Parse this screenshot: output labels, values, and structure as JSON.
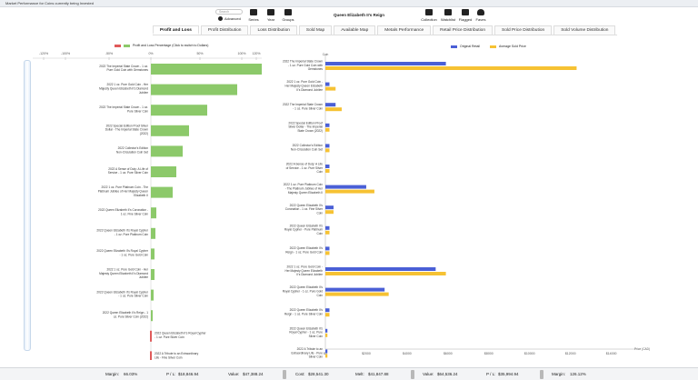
{
  "window": {
    "title": "Market Performance for Coins currently being Invested"
  },
  "toolbar": {
    "search_placeholder": "Search",
    "advanced_label": "Advanced",
    "series_label": "Series",
    "year_label": "Year",
    "groups_label": "Groups",
    "reign_title": "Queen Elizabeth II's Reign",
    "collection_label": "Collection",
    "watchlist_label": "Watchlist",
    "flagged_label": "Flagged",
    "faves_label": "Faves"
  },
  "tabs": [
    {
      "label": "Profit and Loss",
      "active": true
    },
    {
      "label": "Profit Distribution"
    },
    {
      "label": "Loss Distribution"
    },
    {
      "label": "Sold Map"
    },
    {
      "label": "Available Map"
    },
    {
      "label": "Metals Performance"
    },
    {
      "label": "Retail Price Distribution"
    },
    {
      "label": "Sold Price Distribution"
    },
    {
      "label": "Sold Volume Distribution"
    }
  ],
  "chart_data": [
    {
      "type": "bar",
      "orientation": "horizontal",
      "legend": [
        "Profit and Loss Percentage (Click to switch to Dollars)"
      ],
      "series_colors": {
        "profit": "#8cc96a",
        "loss": "#e05a5a"
      },
      "x_tick_labels": [
        "-120%",
        "-100%",
        "-50%",
        "0%",
        "50%",
        "100%",
        "120%"
      ],
      "xlim": [
        -120,
        120
      ],
      "categories": [
        "2022 The Imperial State Crown - 1 oz. Pure Gold Coin with Gemstones",
        "2022 1 oz. Pure Gold Coin - Her Majesty Queen Elizabeth II's Diamond Jubilee",
        "2022 The Imperial State Crown - 1 oz. Pure Silver Coin",
        "2022 Special Edition Proof Silver Dollar - The Imperial State Crown (2022)",
        "2022 Collector's Edition Non-Circulation Coin Set",
        "2022 A Sense of Duty: A Life of Service - 1 oz. Pure Silver Coin",
        "2022 1 oz. Pure Platinum Coin - The Platinum Jubilee of Her Majesty Queen Elizabeth II",
        "2022 Queen Elizabeth II's Coronation - 1 oz. Fine Silver Coin",
        "2022 Queen Elizabeth II's Royal Cypher - 1 oz. Pure Platinum Coin",
        "2022 Queen Elizabeth II's Royal Cypher - 1 oz. Pure Gold Coin",
        "2022 1 oz. Pure Gold Coin - Her Majesty Queen Elizabeth II's Diamond Jubilee",
        "2022 Queen Elizabeth II's Royal Cypher - 1 oz. Pure Silver Coin",
        "2022 Queen Elizabeth II's Reign - 1 oz. Pure Silver Coin (2022)",
        "2022 Queen Elizabeth II's Royal Cypher - 1 oz. Pure Silver Coin",
        "2022 A Tribute to an Extraordinary Life - Fine Silver Coin"
      ],
      "values": [
        122,
        95,
        62,
        42,
        35,
        28,
        24,
        6,
        5,
        4,
        4,
        3,
        2,
        -1,
        -1
      ]
    },
    {
      "type": "bar",
      "orientation": "horizontal",
      "series": [
        {
          "name": "Original Retail",
          "color": "#4a5fd6",
          "values": [
            5900,
            200,
            500,
            200,
            200,
            200,
            2000,
            400,
            200,
            200,
            5400,
            2900,
            200,
            100,
            100
          ]
        },
        {
          "name": "Average Sold Price",
          "color": "#f6c233",
          "values": [
            12300,
            500,
            800,
            200,
            200,
            200,
            2400,
            400,
            200,
            200,
            5900,
            3100,
            200,
            100,
            100
          ]
        }
      ],
      "categories": [
        "2022 The Imperial State Crown - 1 oz. Pure Gold Coin with Gemstones",
        "2022 1 oz. Pure Gold Coin - Her Majesty Queen Elizabeth II's Diamond Jubilee",
        "2022 The Imperial State Crown - 1 oz. Pure Silver Coin",
        "2022 Special Edition Proof Silver Dollar - The Imperial State Crown (2022)",
        "2022 Collector's Edition Non-Circulation Coin Set",
        "2022 A Sense of Duty: A Life of Service - 1 oz. Pure Silver Coin",
        "2022 1 oz. Pure Platinum Coin - The Platinum Jubilee of Her Majesty Queen Elizabeth II",
        "2022 Queen Elizabeth II's Coronation - 1 oz. Fine Silver Coin",
        "2022 Queen Elizabeth II's Royal Cypher - Pure Platinum Coin",
        "2022 Queen Elizabeth II's Reign - 1 oz. Pure Gold Coin",
        "2022 1 oz. Pure Gold Coin - Her Majesty Queen Elizabeth II's Diamond Jubilee",
        "2022 Queen Elizabeth II's Royal Cypher - 1 oz. Pure Gold Coin",
        "2022 Queen Elizabeth II's Reign - 1 oz. Pure Silver Coin",
        "2022 Queen Elizabeth II's Royal Cypher - 1 oz. Pure Silver Coin",
        "2022 A Tribute to an Extraordinary Life - Pure Silver Coin"
      ],
      "x_tick_labels": [
        "$0",
        "$2000",
        "$4000",
        "$6000",
        "$8000",
        "$10000",
        "$12000",
        "$14000"
      ],
      "xlim": [
        0,
        14000
      ],
      "xlabel": "Price (CAD)",
      "ylabel": "Coin"
    }
  ],
  "status": {
    "margin_label": "Margin:",
    "margin_value": "66.03%",
    "pl_label": "P / L:",
    "pl_value": "$18,846.94",
    "value_label": "Value:",
    "value_value": "$47,388.24",
    "cost_label": "Cost:",
    "cost_value": "$28,541.30",
    "melt_label": "Melt:",
    "melt_value": "$41,847.88",
    "value2_label": "Value:",
    "value2_value": "$64,536.24",
    "pl2_label": "P / L:",
    "pl2_value": "$35,994.94",
    "margin2_label": "Margin:",
    "margin2_value": "126.12%"
  }
}
